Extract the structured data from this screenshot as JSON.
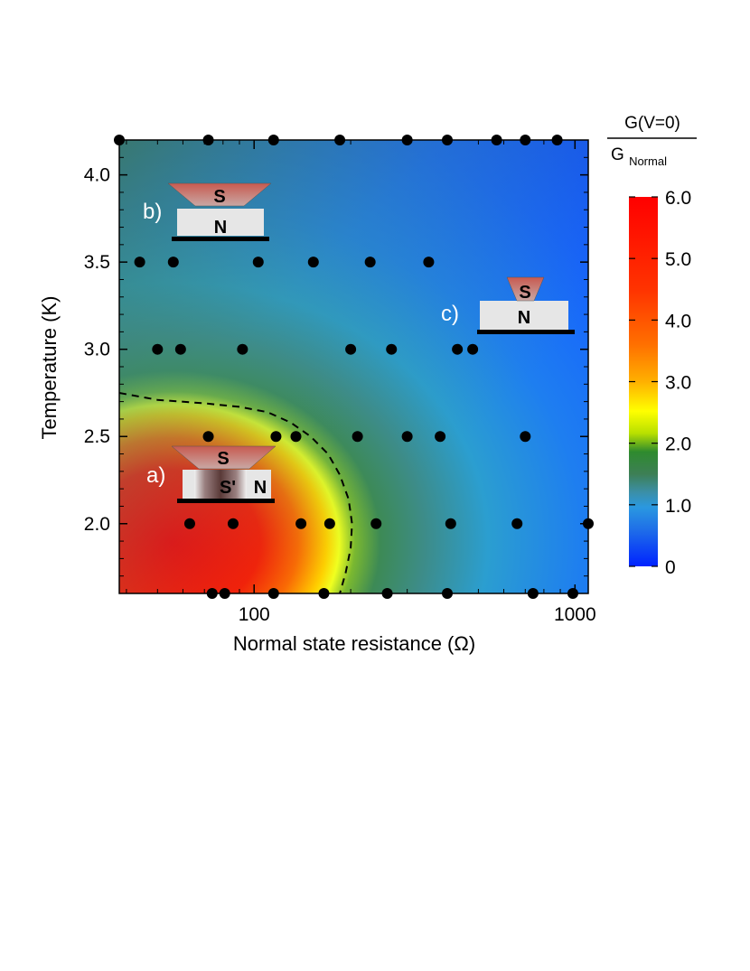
{
  "chart_data": {
    "type": "heatmap",
    "title": "",
    "xlabel": "Normal state resistance (Ω)",
    "ylabel": "Temperature (K)",
    "x_scale": "log",
    "xlim": [
      38,
      1100
    ],
    "ylim": [
      1.6,
      4.2
    ],
    "x_ticks": [
      100,
      1000
    ],
    "x_tick_labels": [
      "100",
      "1000"
    ],
    "y_ticks": [
      2.0,
      2.5,
      3.0,
      3.5,
      4.0
    ],
    "y_tick_labels": [
      "2.0",
      "2.5",
      "3.0",
      "3.5",
      "4.0"
    ],
    "colorbar": {
      "title_numerator": "G(V=0)",
      "title_denominator_main": "G",
      "title_denominator_sub": "Normal",
      "ticks": [
        0,
        1.0,
        2.0,
        3.0,
        4.0,
        5.0,
        6.0
      ],
      "tick_labels": [
        "0",
        "1.0",
        "2.0",
        "3.0",
        "4.0",
        "5.0",
        "6.0"
      ],
      "range": [
        0,
        6.0
      ],
      "colors": [
        "#0022ff",
        "#1f6fe8",
        "#2a98e0",
        "#3b8fa8",
        "#3d7f55",
        "#2e8b2e",
        "#b8e000",
        "#ffff00",
        "#ffb000",
        "#ff7000",
        "#ff3300",
        "#ff0000"
      ]
    },
    "points": [
      {
        "r": 38,
        "t": 4.2
      },
      {
        "r": 72,
        "t": 4.2
      },
      {
        "r": 115,
        "t": 4.2
      },
      {
        "r": 185,
        "t": 4.2
      },
      {
        "r": 300,
        "t": 4.2
      },
      {
        "r": 400,
        "t": 4.2
      },
      {
        "r": 570,
        "t": 4.2
      },
      {
        "r": 700,
        "t": 4.2
      },
      {
        "r": 880,
        "t": 4.2
      },
      {
        "r": 44,
        "t": 3.5
      },
      {
        "r": 56,
        "t": 3.5
      },
      {
        "r": 103,
        "t": 3.5
      },
      {
        "r": 153,
        "t": 3.5
      },
      {
        "r": 230,
        "t": 3.5
      },
      {
        "r": 350,
        "t": 3.5
      },
      {
        "r": 50,
        "t": 3.0
      },
      {
        "r": 59,
        "t": 3.0
      },
      {
        "r": 92,
        "t": 3.0
      },
      {
        "r": 200,
        "t": 3.0
      },
      {
        "r": 268,
        "t": 3.0
      },
      {
        "r": 430,
        "t": 3.0
      },
      {
        "r": 480,
        "t": 3.0
      },
      {
        "r": 72,
        "t": 2.5
      },
      {
        "r": 117,
        "t": 2.5
      },
      {
        "r": 135,
        "t": 2.5
      },
      {
        "r": 210,
        "t": 2.5
      },
      {
        "r": 300,
        "t": 2.5
      },
      {
        "r": 380,
        "t": 2.5
      },
      {
        "r": 700,
        "t": 2.5
      },
      {
        "r": 63,
        "t": 2.0
      },
      {
        "r": 86,
        "t": 2.0
      },
      {
        "r": 140,
        "t": 2.0
      },
      {
        "r": 172,
        "t": 2.0
      },
      {
        "r": 240,
        "t": 2.0
      },
      {
        "r": 410,
        "t": 2.0
      },
      {
        "r": 660,
        "t": 2.0
      },
      {
        "r": 1100,
        "t": 2.0
      },
      {
        "r": 74,
        "t": 1.6
      },
      {
        "r": 81,
        "t": 1.6
      },
      {
        "r": 115,
        "t": 1.6
      },
      {
        "r": 165,
        "t": 1.6
      },
      {
        "r": 260,
        "t": 1.6
      },
      {
        "r": 400,
        "t": 1.6
      },
      {
        "r": 740,
        "t": 1.6
      },
      {
        "r": 985,
        "t": 1.6
      }
    ],
    "contour": [
      {
        "r": 38,
        "t": 2.75
      },
      {
        "r": 50,
        "t": 2.71
      },
      {
        "r": 70,
        "t": 2.69
      },
      {
        "r": 90,
        "t": 2.67
      },
      {
        "r": 110,
        "t": 2.64
      },
      {
        "r": 130,
        "t": 2.58
      },
      {
        "r": 150,
        "t": 2.5
      },
      {
        "r": 170,
        "t": 2.4
      },
      {
        "r": 185,
        "t": 2.28
      },
      {
        "r": 197,
        "t": 2.14
      },
      {
        "r": 202,
        "t": 2.0
      },
      {
        "r": 200,
        "t": 1.86
      },
      {
        "r": 193,
        "t": 1.72
      },
      {
        "r": 185,
        "t": 1.6
      }
    ],
    "annotations": [
      {
        "label": "a)",
        "top": "S",
        "mid": "S'",
        "bottom": "N"
      },
      {
        "label": "b)",
        "top": "S",
        "bottom": "N"
      },
      {
        "label": "c)",
        "top": "S",
        "bottom": "N"
      }
    ]
  }
}
